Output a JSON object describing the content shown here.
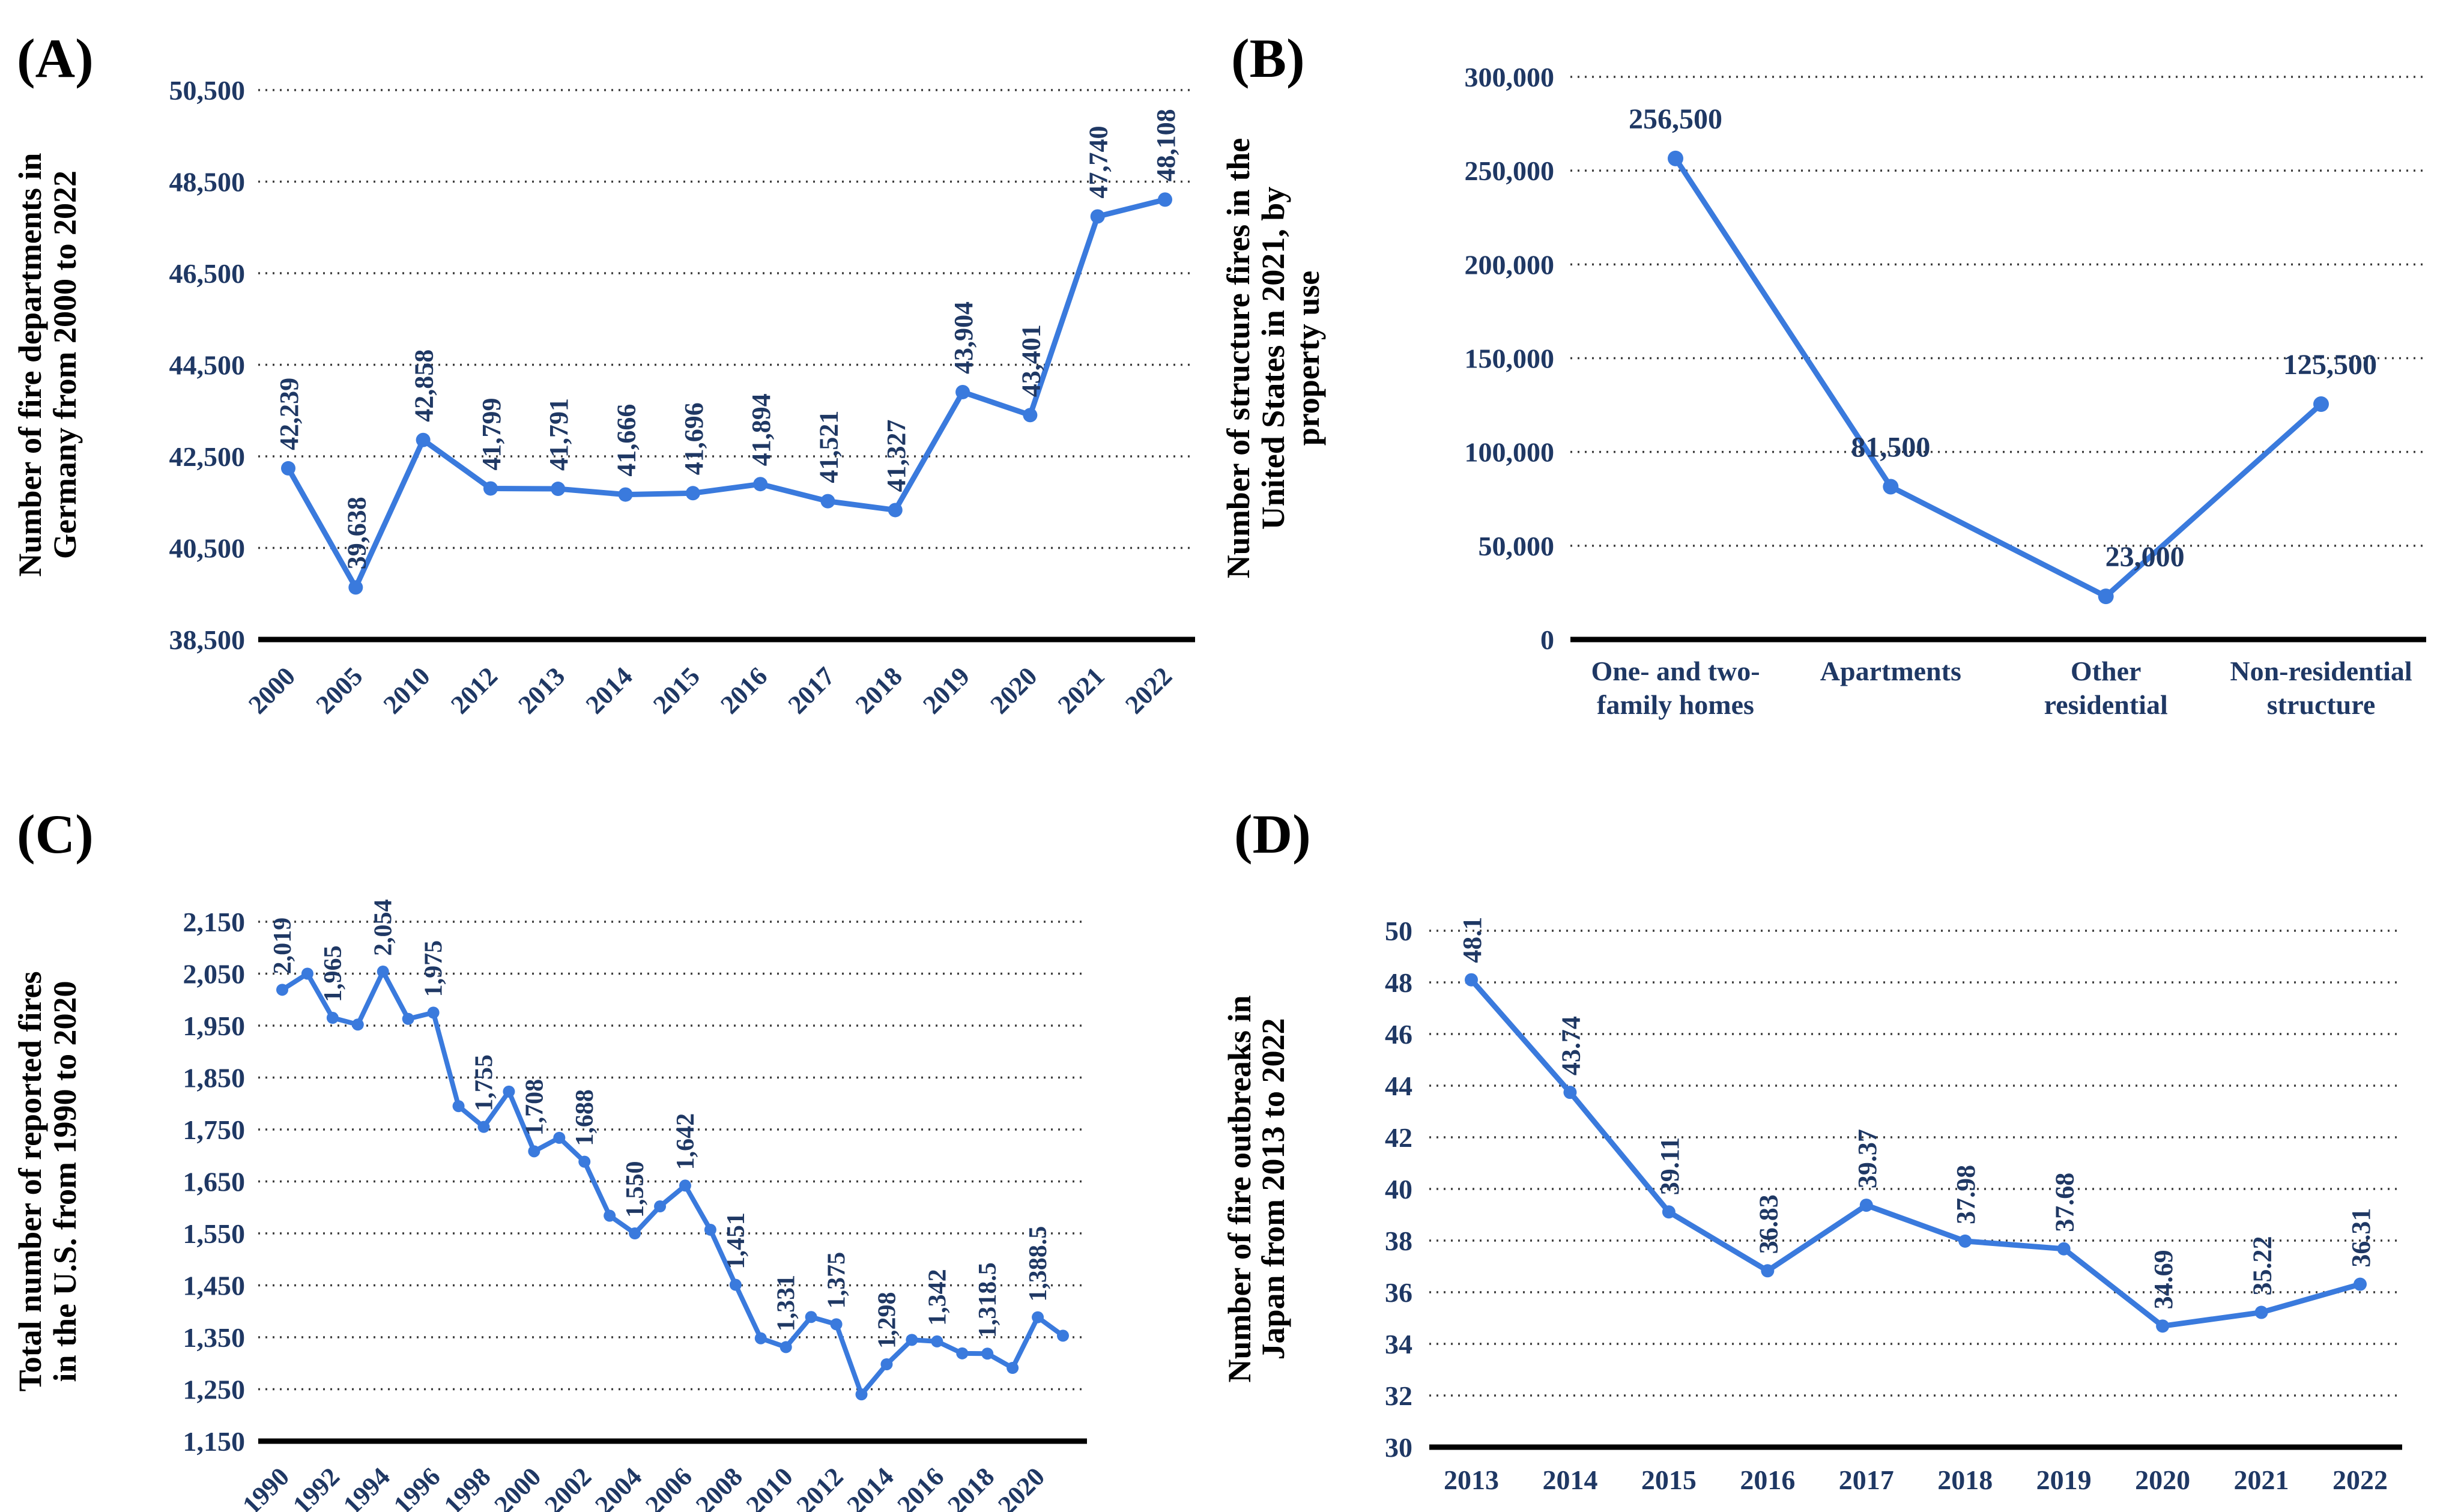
{
  "figure": {
    "accent_color": "#3a7add",
    "label_color": "#1f3864",
    "axis_color": "#000000",
    "gridline_color": "#3d3d3d",
    "background": "#ffffff"
  },
  "chart_data": [
    {
      "id": "A",
      "panel_letter": "(A)",
      "type": "line",
      "ylabel_lines": [
        "Number of fire departments in",
        "Germany from 2000 to 2022"
      ],
      "categories": [
        "2000",
        "2005",
        "2010",
        "2012",
        "2013",
        "2014",
        "2015",
        "2016",
        "2017",
        "2018",
        "2019",
        "2020",
        "2021",
        "2022"
      ],
      "values": [
        42239,
        39638,
        42858,
        41799,
        41791,
        41666,
        41696,
        41894,
        41521,
        41327,
        43904,
        43401,
        47740,
        48108
      ],
      "point_labels": [
        "42,239",
        "39,638",
        "42,858",
        "41,799",
        "41,791",
        "41,666",
        "41,696",
        "41,894",
        "41,521",
        "41,327",
        "43,904",
        "43,401",
        "47,740",
        "48,108"
      ],
      "ylim": [
        38500,
        50500
      ],
      "ytick_step": 2000,
      "ytick_labels": [
        "50,500",
        "48,500",
        "46,500",
        "44,500",
        "42,500",
        "40,500",
        "38,500"
      ],
      "grid": true,
      "legend": "none",
      "xlabel": "",
      "point_label_orientation": "vertical",
      "xtick_orientation": "rotated"
    },
    {
      "id": "B",
      "panel_letter": "(B)",
      "type": "line",
      "ylabel_lines": [
        "Number of structure fires in the",
        "United States in 2021, by",
        "property use"
      ],
      "categories_multiline": [
        [
          "One- and two-",
          "family homes"
        ],
        [
          "Apartments"
        ],
        [
          "Other",
          "residential"
        ],
        [
          "Non-residential",
          "structure"
        ]
      ],
      "values": [
        256500,
        81500,
        23000,
        125500
      ],
      "point_labels": [
        "256,500",
        "81,500",
        "23,000",
        "125,500"
      ],
      "ylim": [
        0,
        300000
      ],
      "ytick_step": 50000,
      "ytick_labels": [
        "300,000",
        "250,000",
        "200,000",
        "150,000",
        "100,000",
        "50,000",
        "0"
      ],
      "grid": true,
      "legend": "none",
      "xlabel": "",
      "point_label_orientation": "horizontal",
      "xtick_orientation": "horizontal-multiline"
    },
    {
      "id": "C",
      "panel_letter": "(C)",
      "type": "line",
      "ylabel_lines": [
        "Total number of reported fires",
        "in the U.S. from 1990 to 2020"
      ],
      "x": [
        1990,
        1991,
        1992,
        1993,
        1994,
        1995,
        1996,
        1997,
        1998,
        1999,
        2000,
        2001,
        2002,
        2003,
        2004,
        2005,
        2006,
        2007,
        2008,
        2009,
        2010,
        2011,
        2012,
        2013,
        2014,
        2015,
        2016,
        2017,
        2018,
        2019,
        2020,
        2021
      ],
      "values": [
        2019,
        2050,
        1965,
        1952,
        2054,
        1963,
        1975,
        1795,
        1755,
        1823,
        1708,
        1734,
        1688,
        1584,
        1550,
        1602,
        1642,
        1557,
        1451,
        1348,
        1331,
        1389,
        1375,
        1240,
        1298,
        1345,
        1342,
        1319,
        1318.5,
        1291,
        1388.5,
        1353
      ],
      "point_labels": [
        "2,019",
        null,
        "1,965",
        null,
        "2,054",
        null,
        "1,975",
        null,
        "1,755",
        null,
        "1,708",
        null,
        "1,688",
        null,
        "1,550",
        null,
        "1,642",
        null,
        "1,451",
        null,
        "1,331",
        null,
        "1,375",
        null,
        "1,298",
        null,
        "1,342",
        null,
        "1,318.5",
        null,
        "1,388.5",
        null
      ],
      "xtick_labels": [
        "1990",
        "1992",
        "1994",
        "1996",
        "1998",
        "2000",
        "2002",
        "2004",
        "2006",
        "2008",
        "2010",
        "2012",
        "2014",
        "2016",
        "2018",
        "2020"
      ],
      "xtick_every": 2,
      "ylim": [
        1150,
        2150
      ],
      "ytick_step": 100,
      "ytick_labels": [
        "2,150",
        "2,050",
        "1,950",
        "1,850",
        "1,750",
        "1,650",
        "1,550",
        "1,450",
        "1,350",
        "1,250",
        "1,150"
      ],
      "grid": true,
      "legend": "none",
      "xlabel": "",
      "point_label_orientation": "vertical",
      "xtick_orientation": "rotated"
    },
    {
      "id": "D",
      "panel_letter": "(D)",
      "type": "line",
      "ylabel_lines": [
        "Number of fire outbreaks in",
        "Japan from 2013 to 2022"
      ],
      "categories": [
        "2013",
        "2014",
        "2015",
        "2016",
        "2017",
        "2018",
        "2019",
        "2020",
        "2021",
        "2022"
      ],
      "values": [
        48.1,
        43.74,
        39.11,
        36.83,
        39.37,
        37.98,
        37.68,
        34.69,
        35.22,
        36.31
      ],
      "point_labels": [
        "48.1",
        "43.74",
        "39.11",
        "36.83",
        "39.37",
        "37.98",
        "37.68",
        "34.69",
        "35.22",
        "36.31"
      ],
      "ylim": [
        30,
        50
      ],
      "ytick_step": 2,
      "ytick_labels": [
        "50",
        "48",
        "46",
        "44",
        "42",
        "40",
        "38",
        "36",
        "34",
        "32",
        "30"
      ],
      "grid": true,
      "legend": "none",
      "xlabel": "",
      "point_label_orientation": "vertical",
      "xtick_orientation": "horizontal"
    }
  ]
}
